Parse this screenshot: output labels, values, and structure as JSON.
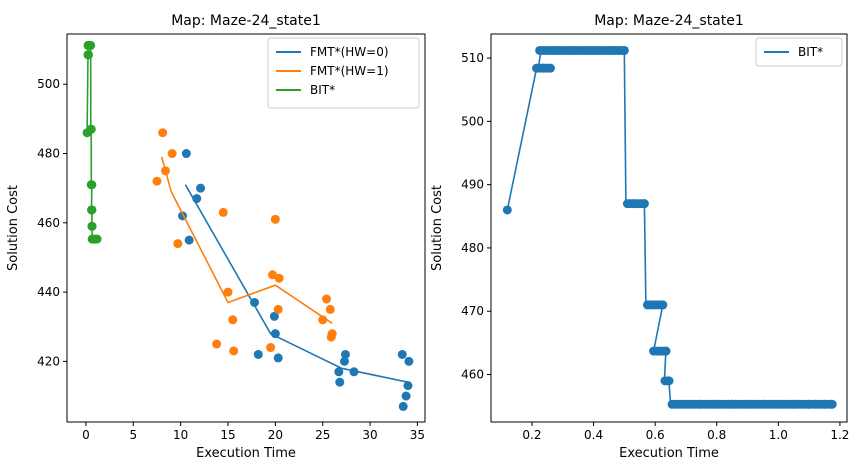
{
  "chart_data": [
    {
      "type": "scatter",
      "title": "Map: Maze-24_state1",
      "xlabel": "Execution Time",
      "ylabel": "Solution Cost",
      "xlim": [
        -2,
        35.8
      ],
      "ylim": [
        402.5,
        514.5
      ],
      "xticks": [
        0,
        5,
        10,
        15,
        20,
        25,
        30,
        35
      ],
      "yticks": [
        420,
        440,
        460,
        480,
        500
      ],
      "grid": false,
      "legend_position": "top-right",
      "legend": [
        "FMT*(HW=0)",
        "FMT*(HW=1)",
        "BIT*"
      ],
      "series": [
        {
          "name": "FMT*(HW=0)",
          "color": "#1f77b4",
          "line": [
            [
              10.5,
              471
            ],
            [
              19.5,
              428
            ],
            [
              27,
              418
            ],
            [
              34,
              414
            ]
          ],
          "points": [
            [
              10.6,
              480
            ],
            [
              11.7,
              467
            ],
            [
              12.1,
              470
            ],
            [
              10.9,
              455
            ],
            [
              10.2,
              462
            ],
            [
              17.8,
              437
            ],
            [
              18.2,
              422
            ],
            [
              19.9,
              433
            ],
            [
              20.0,
              428
            ],
            [
              20.3,
              421
            ],
            [
              26.7,
              417
            ],
            [
              26.8,
              414
            ],
            [
              27.4,
              422
            ],
            [
              27.3,
              420
            ],
            [
              28.3,
              417
            ],
            [
              33.4,
              422
            ],
            [
              34.1,
              420
            ],
            [
              34.0,
              413
            ],
            [
              33.8,
              410
            ],
            [
              33.5,
              407
            ]
          ]
        },
        {
          "name": "FMT*(HW=1)",
          "color": "#ff7f0e",
          "line": [
            [
              8,
              479
            ],
            [
              9,
              469
            ],
            [
              15,
              437
            ],
            [
              20,
              442
            ],
            [
              26,
              431
            ]
          ],
          "points": [
            [
              8.1,
              486
            ],
            [
              7.5,
              472
            ],
            [
              8.4,
              475
            ],
            [
              9.1,
              480
            ],
            [
              9.7,
              454
            ],
            [
              14.5,
              463
            ],
            [
              15.0,
              440
            ],
            [
              15.5,
              432
            ],
            [
              15.6,
              423
            ],
            [
              13.8,
              425
            ],
            [
              19.7,
              445
            ],
            [
              19.5,
              424
            ],
            [
              20.0,
              461
            ],
            [
              20.4,
              444
            ],
            [
              20.3,
              435
            ],
            [
              25.4,
              438
            ],
            [
              25.0,
              432
            ],
            [
              25.8,
              435
            ],
            [
              26.0,
              428
            ],
            [
              25.9,
              427
            ]
          ]
        },
        {
          "name": "BIT*",
          "color": "#2ca02c",
          "line": [
            [
              0.12,
              486
            ],
            [
              0.22,
              508.5
            ],
            [
              0.25,
              511.2
            ],
            [
              0.5,
              511.2
            ],
            [
              0.51,
              487
            ],
            [
              0.56,
              487
            ],
            [
              0.57,
              471
            ],
            [
              0.62,
              471
            ],
            [
              0.59,
              463.7
            ],
            [
              0.63,
              463.7
            ],
            [
              0.63,
              459
            ],
            [
              0.64,
              459
            ],
            [
              0.66,
              455.3
            ],
            [
              1.17,
              455.3
            ]
          ],
          "points": [
            [
              0.12,
              486
            ],
            [
              0.22,
              508.5
            ],
            [
              0.24,
              508.5
            ],
            [
              0.27,
              508.5
            ],
            [
              0.22,
              511.2
            ],
            [
              0.3,
              511.2
            ],
            [
              0.4,
              511.2
            ],
            [
              0.5,
              511.2
            ],
            [
              0.51,
              487
            ],
            [
              0.53,
              487
            ],
            [
              0.56,
              487
            ],
            [
              0.56,
              471
            ],
            [
              0.59,
              471
            ],
            [
              0.62,
              471
            ],
            [
              0.59,
              463.7
            ],
            [
              0.61,
              463.7
            ],
            [
              0.63,
              463.7
            ],
            [
              0.63,
              459
            ],
            [
              0.65,
              459
            ],
            [
              0.66,
              455.3
            ],
            [
              0.8,
              455.3
            ],
            [
              1.0,
              455.3
            ],
            [
              1.17,
              455.3
            ]
          ]
        }
      ]
    },
    {
      "type": "line",
      "title": "Map: Maze-24_state1",
      "xlabel": "Execution Time",
      "ylabel": "Solution Cost",
      "xlim": [
        0.067,
        1.223
      ],
      "ylim": [
        452.5,
        513.8
      ],
      "xticks": [
        0.2,
        0.4,
        0.6,
        0.8,
        1.0,
        1.2
      ],
      "xtick_labels": [
        "0.2",
        "0.4",
        "0.6",
        "0.8",
        "1.0",
        "1.2"
      ],
      "yticks": [
        460,
        470,
        480,
        490,
        500,
        510
      ],
      "grid": false,
      "legend_position": "top-right",
      "legend": [
        "BIT*"
      ],
      "series": [
        {
          "name": "BIT*",
          "color": "#1f77b4",
          "line": [
            [
              0.12,
              486
            ],
            [
              0.215,
              508.4
            ],
            [
              0.22,
              508.4
            ],
            [
              0.23,
              511.2
            ],
            [
              0.5,
              511.2
            ],
            [
              0.505,
              487
            ],
            [
              0.565,
              487
            ],
            [
              0.57,
              471
            ],
            [
              0.625,
              471
            ],
            [
              0.595,
              463.7
            ],
            [
              0.635,
              463.7
            ],
            [
              0.63,
              459
            ],
            [
              0.645,
              459
            ],
            [
              0.65,
              455.3
            ],
            [
              1.175,
              455.3
            ]
          ],
          "markers": [
            [
              0.12,
              486
            ],
            [
              0.215,
              508.4
            ],
            [
              0.235,
              508.4
            ],
            [
              0.26,
              508.4
            ],
            [
              0.225,
              511.2
            ],
            [
              0.27,
              511.2
            ],
            [
              0.32,
              511.2
            ],
            [
              0.37,
              511.2
            ],
            [
              0.42,
              511.2
            ],
            [
              0.47,
              511.2
            ],
            [
              0.5,
              511.2
            ],
            [
              0.51,
              487
            ],
            [
              0.535,
              487
            ],
            [
              0.565,
              487
            ],
            [
              0.575,
              471
            ],
            [
              0.6,
              471
            ],
            [
              0.625,
              471
            ],
            [
              0.595,
              463.7
            ],
            [
              0.615,
              463.7
            ],
            [
              0.635,
              463.7
            ],
            [
              0.632,
              459
            ],
            [
              0.645,
              459
            ],
            [
              0.655,
              455.3
            ],
            [
              0.7,
              455.3
            ],
            [
              0.75,
              455.3
            ],
            [
              0.8,
              455.3
            ],
            [
              0.85,
              455.3
            ],
            [
              0.9,
              455.3
            ],
            [
              0.95,
              455.3
            ],
            [
              1.0,
              455.3
            ],
            [
              1.05,
              455.3
            ],
            [
              1.1,
              455.3
            ],
            [
              1.15,
              455.3
            ],
            [
              1.175,
              455.3
            ]
          ]
        }
      ]
    }
  ]
}
